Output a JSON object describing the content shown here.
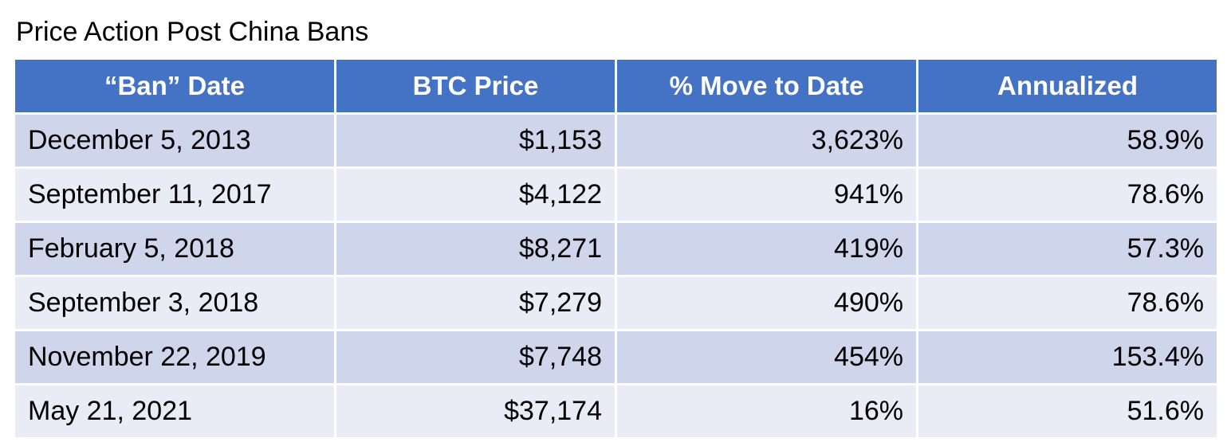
{
  "chart_data": {
    "type": "table",
    "title": "Price Action Post China Bans",
    "columns": [
      "“Ban” Date",
      "BTC Price",
      "% Move to Date",
      "Annualized"
    ],
    "rows": [
      [
        "December 5, 2013",
        "$1,153",
        "3,623%",
        "58.9%"
      ],
      [
        "September 11, 2017",
        "$4,122",
        "941%",
        "78.6%"
      ],
      [
        "February 5, 2018",
        "$8,271",
        "419%",
        "57.3%"
      ],
      [
        "September 3, 2018",
        "$7,279",
        "490%",
        "78.6%"
      ],
      [
        "November 22, 2019",
        "$7,748",
        "454%",
        "153.4%"
      ],
      [
        "May 21, 2021",
        "$37,174",
        "16%",
        "51.6%"
      ]
    ]
  },
  "colors": {
    "header_background": "#4472c4",
    "row_band_dark": "#cfd5ea",
    "row_band_light": "#e9ebf5"
  }
}
